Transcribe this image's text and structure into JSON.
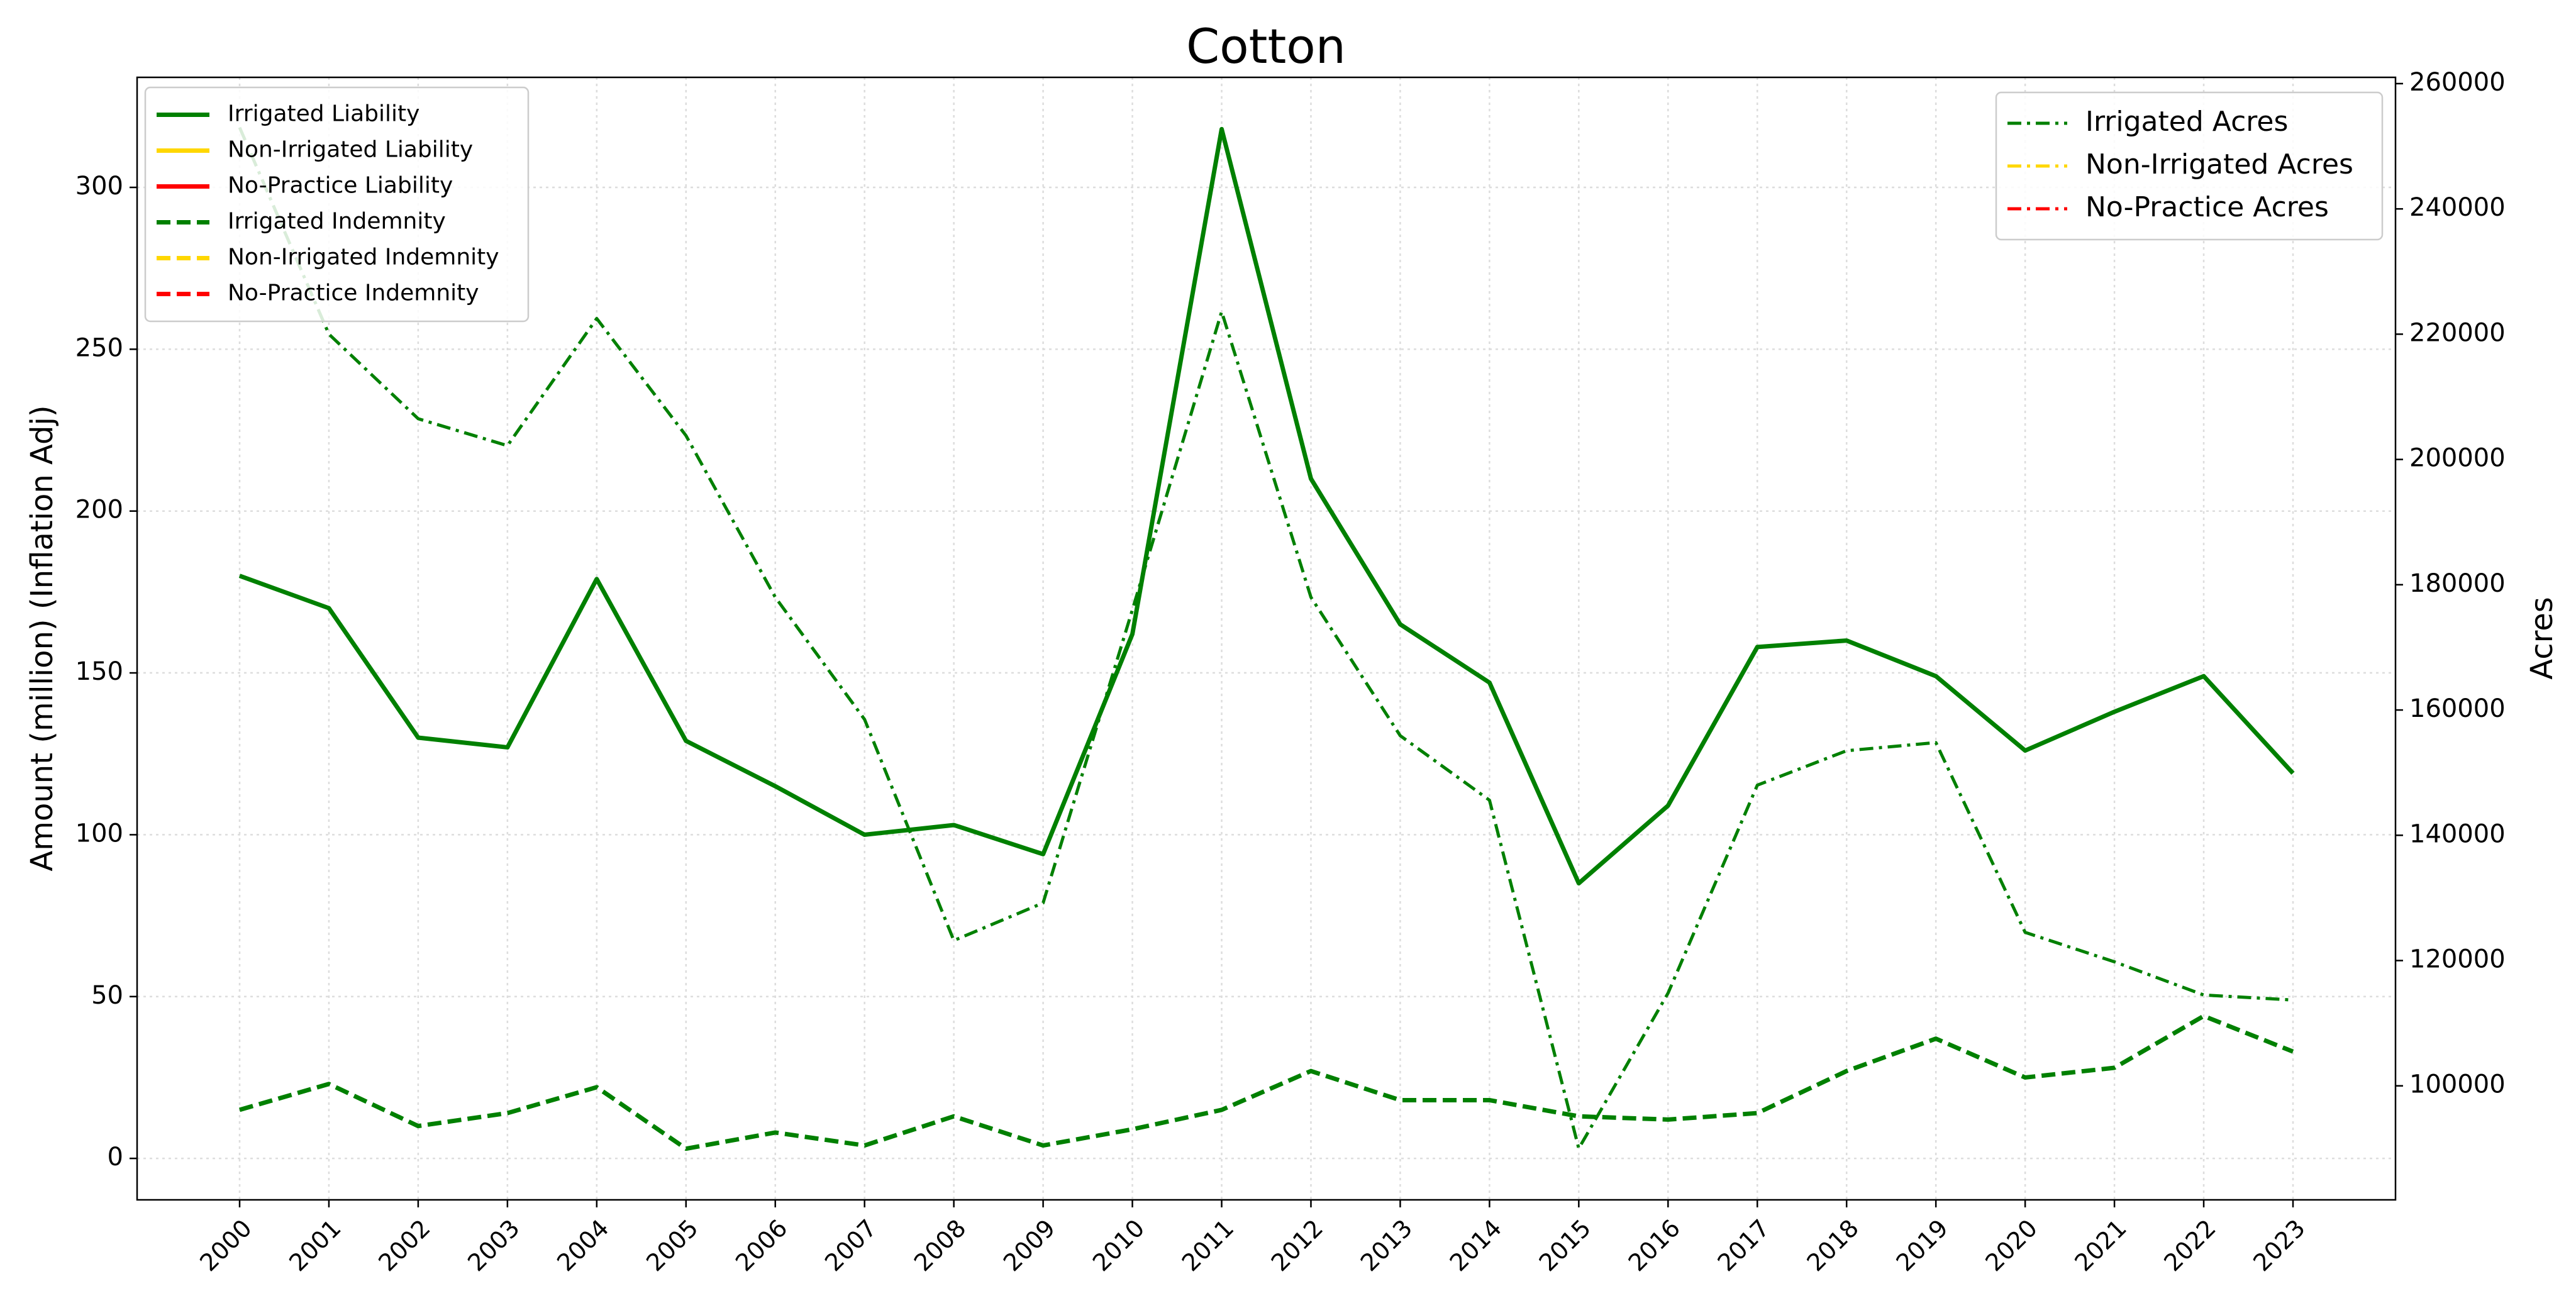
{
  "chart_data": {
    "type": "line",
    "title": "Cotton",
    "ylabel": "Amount (million) (Inflation Adj)",
    "y2label": "Acres",
    "categories": [
      "2000",
      "2001",
      "2002",
      "2003",
      "2004",
      "2005",
      "2006",
      "2007",
      "2008",
      "2009",
      "2010",
      "2011",
      "2012",
      "2013",
      "2014",
      "2015",
      "2016",
      "2017",
      "2018",
      "2019",
      "2020",
      "2021",
      "2022",
      "2023"
    ],
    "series": [
      {
        "name": "Irrigated Liability",
        "color": "#008000",
        "linestyle": "solid",
        "axis": "y",
        "values": [
          180,
          170,
          130,
          127,
          179,
          129,
          115,
          100,
          103,
          94,
          162,
          318,
          210,
          165,
          147,
          85,
          109,
          158,
          160,
          149,
          126,
          138,
          149,
          119
        ]
      },
      {
        "name": "Non-Irrigated Liability",
        "color": "#ffd700",
        "linestyle": "solid",
        "axis": "y",
        "values": [
          null,
          null,
          null,
          null,
          null,
          null,
          null,
          null,
          null,
          null,
          null,
          null,
          null,
          null,
          null,
          null,
          null,
          null,
          null,
          null,
          null,
          null,
          null,
          null
        ]
      },
      {
        "name": "No-Practice Liability",
        "color": "#ff0000",
        "linestyle": "solid",
        "axis": "y",
        "values": [
          null,
          null,
          null,
          null,
          null,
          null,
          null,
          null,
          null,
          null,
          null,
          null,
          null,
          null,
          null,
          null,
          null,
          null,
          null,
          null,
          null,
          null,
          null,
          null
        ]
      },
      {
        "name": "Irrigated Indemnity",
        "color": "#008000",
        "linestyle": "dashed",
        "axis": "y",
        "values": [
          15,
          23,
          10,
          14,
          22,
          3,
          8,
          4,
          13,
          4,
          9,
          15,
          27,
          18,
          18,
          13,
          12,
          14,
          27,
          37,
          25,
          28,
          44,
          33
        ]
      },
      {
        "name": "Non-Irrigated Indemnity",
        "color": "#ffd700",
        "linestyle": "dashed",
        "axis": "y",
        "values": [
          null,
          null,
          null,
          null,
          null,
          null,
          null,
          null,
          null,
          null,
          null,
          null,
          null,
          null,
          null,
          null,
          null,
          null,
          null,
          null,
          null,
          null,
          null,
          null
        ]
      },
      {
        "name": "No-Practice Indemnity",
        "color": "#ff0000",
        "linestyle": "dashed",
        "axis": "y",
        "values": [
          null,
          null,
          null,
          null,
          null,
          null,
          null,
          null,
          null,
          null,
          null,
          null,
          null,
          null,
          null,
          null,
          null,
          null,
          null,
          null,
          null,
          null,
          null,
          null
        ]
      },
      {
        "name": "Irrigated Acres",
        "color": "#008000",
        "linestyle": "dashdot",
        "axis": "y2",
        "values": [
          253000,
          220000,
          206500,
          202200,
          222500,
          203800,
          178000,
          158500,
          123200,
          129200,
          176000,
          223600,
          178000,
          155900,
          145600,
          90000,
          114800,
          148000,
          153500,
          154800,
          124500,
          119800,
          114500,
          113700
        ]
      },
      {
        "name": "Non-Irrigated Acres",
        "color": "#ffd700",
        "linestyle": "dashdot",
        "axis": "y2",
        "values": [
          null,
          null,
          null,
          null,
          null,
          null,
          null,
          null,
          null,
          null,
          null,
          null,
          null,
          null,
          null,
          null,
          null,
          null,
          null,
          null,
          null,
          null,
          null,
          null
        ]
      },
      {
        "name": "No-Practice Acres",
        "color": "#ff0000",
        "linestyle": "dashdot",
        "axis": "y2",
        "values": [
          null,
          null,
          null,
          null,
          null,
          null,
          null,
          null,
          null,
          null,
          null,
          null,
          null,
          null,
          null,
          null,
          null,
          null,
          null,
          null,
          null,
          null,
          null,
          null
        ]
      }
    ],
    "ylim": [
      -12.8,
      334
    ],
    "yticks": [
      0,
      50,
      100,
      150,
      200,
      250,
      300
    ],
    "y2lim": [
      81800,
      261000
    ],
    "y2ticks": [
      100000,
      120000,
      140000,
      160000,
      180000,
      200000,
      220000,
      240000,
      260000
    ],
    "grid": true,
    "legend": "upper left",
    "legend2": "upper right"
  }
}
